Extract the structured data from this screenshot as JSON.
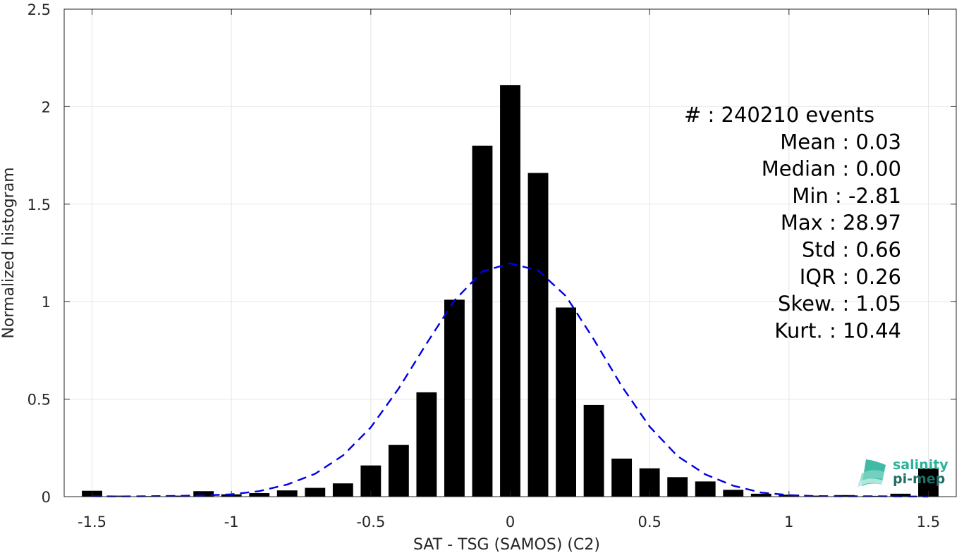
{
  "chart_data": {
    "type": "bar",
    "xlabel": "SAT - TSG (SAMOS) (C2)",
    "ylabel": "Normalized histogram",
    "xlim": [
      -1.6,
      1.6
    ],
    "ylim": [
      0,
      2.5
    ],
    "xticks": [
      -1.5,
      -1,
      -0.5,
      0,
      0.5,
      1,
      1.5
    ],
    "xtick_labels": [
      "-1.5",
      "-1",
      "-0.5",
      "0",
      "0.5",
      "1",
      "1.5"
    ],
    "yticks": [
      0,
      0.5,
      1,
      1.5,
      2,
      2.5
    ],
    "ytick_labels": [
      "0",
      "0.5",
      "1",
      "1.5",
      "2",
      "2.5"
    ],
    "grid": true,
    "bin_width": 0.1,
    "bar_color": "#000000",
    "bins": [
      {
        "x": -1.5,
        "y": 0.03
      },
      {
        "x": -1.4,
        "y": 0.005
      },
      {
        "x": -1.3,
        "y": 0.003
      },
      {
        "x": -1.2,
        "y": 0.005
      },
      {
        "x": -1.1,
        "y": 0.028
      },
      {
        "x": -1.0,
        "y": 0.012
      },
      {
        "x": -0.9,
        "y": 0.018
      },
      {
        "x": -0.8,
        "y": 0.032
      },
      {
        "x": -0.7,
        "y": 0.045
      },
      {
        "x": -0.6,
        "y": 0.068
      },
      {
        "x": -0.5,
        "y": 0.16
      },
      {
        "x": -0.4,
        "y": 0.265
      },
      {
        "x": -0.3,
        "y": 0.535
      },
      {
        "x": -0.2,
        "y": 1.01
      },
      {
        "x": -0.1,
        "y": 1.8
      },
      {
        "x": 0.0,
        "y": 2.11
      },
      {
        "x": 0.1,
        "y": 1.66
      },
      {
        "x": 0.2,
        "y": 0.97
      },
      {
        "x": 0.3,
        "y": 0.47
      },
      {
        "x": 0.4,
        "y": 0.195
      },
      {
        "x": 0.5,
        "y": 0.145
      },
      {
        "x": 0.6,
        "y": 0.1
      },
      {
        "x": 0.7,
        "y": 0.078
      },
      {
        "x": 0.8,
        "y": 0.035
      },
      {
        "x": 0.9,
        "y": 0.015
      },
      {
        "x": 1.0,
        "y": 0.01
      },
      {
        "x": 1.1,
        "y": 0.005
      },
      {
        "x": 1.2,
        "y": 0.008
      },
      {
        "x": 1.3,
        "y": 0.004
      },
      {
        "x": 1.4,
        "y": 0.015
      },
      {
        "x": 1.5,
        "y": 0.145
      }
    ],
    "fit_curve": {
      "style": "dashed",
      "color": "#0000e6",
      "x": [
        -1.5,
        -1.4,
        -1.3,
        -1.2,
        -1.1,
        -1.0,
        -0.9,
        -0.8,
        -0.7,
        -0.6,
        -0.5,
        -0.4,
        -0.3,
        -0.2,
        -0.1,
        0.0,
        0.1,
        0.2,
        0.3,
        0.4,
        0.5,
        0.6,
        0.7,
        0.8,
        0.9,
        1.0,
        1.1,
        1.2,
        1.3,
        1.4,
        1.5
      ],
      "y": [
        0.002,
        0.0012,
        0.0022,
        0.004,
        0.006,
        0.012,
        0.028,
        0.062,
        0.117,
        0.211,
        0.355,
        0.555,
        0.785,
        1.006,
        1.155,
        1.196,
        1.16,
        1.028,
        0.806,
        0.567,
        0.359,
        0.208,
        0.114,
        0.056,
        0.021,
        0.008,
        0.003,
        0.0015,
        0.002,
        0.0009,
        0.0004
      ]
    },
    "stats": [
      "#  : 240210 events",
      "Mean : 0.03",
      "Median : 0.00",
      "Min : -2.81",
      "Max : 28.97",
      "Std : 0.66",
      "IQR : 0.26",
      "Skew. : 1.05",
      "Kurt. : 10.44"
    ]
  },
  "logo": {
    "line1": "salinity",
    "line2": "pi-mep",
    "color1": "#2bb39a",
    "color2": "#1f6f66"
  }
}
